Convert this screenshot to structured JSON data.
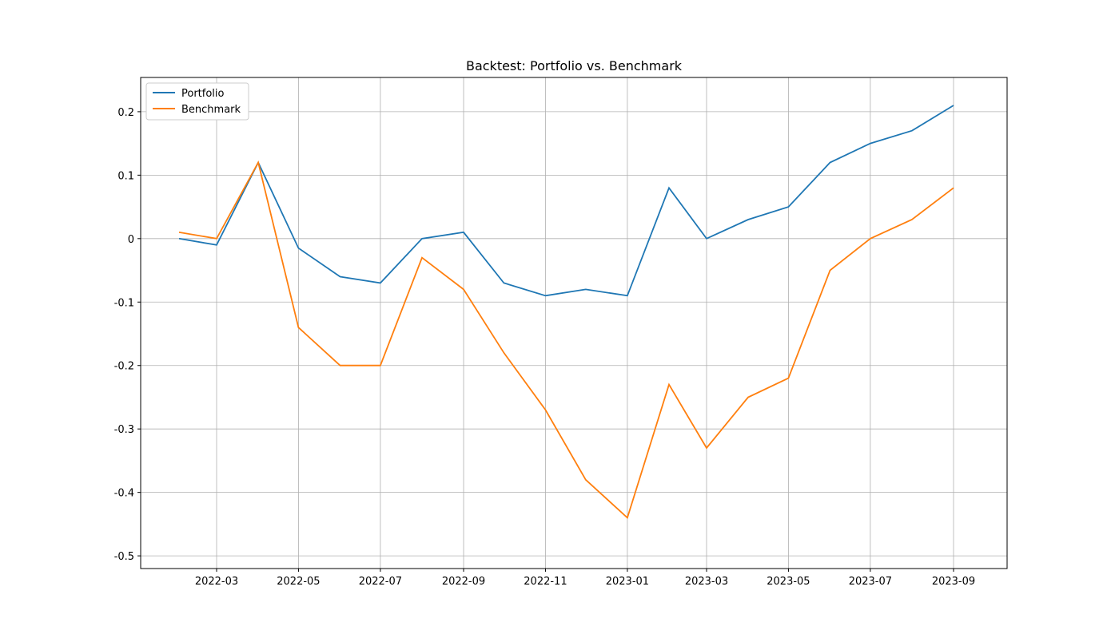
{
  "chart_data": {
    "type": "line",
    "title": "Backtest: Portfolio vs. Benchmark",
    "x": [
      "2022-02",
      "2022-03",
      "2022-04",
      "2022-05",
      "2022-06",
      "2022-07",
      "2022-08",
      "2022-09",
      "2022-10",
      "2022-11",
      "2022-12",
      "2023-01",
      "2023-02",
      "2023-03",
      "2023-04",
      "2023-05",
      "2023-06",
      "2023-07",
      "2023-08",
      "2023-09"
    ],
    "series": [
      {
        "name": "Portfolio",
        "color": "#1f77b4",
        "values": [
          0.0,
          -0.01,
          0.12,
          -0.015,
          -0.06,
          -0.07,
          0.0,
          0.01,
          -0.07,
          -0.09,
          -0.08,
          -0.09,
          0.08,
          0.0,
          0.03,
          0.05,
          0.12,
          0.15,
          0.17,
          0.21
        ]
      },
      {
        "name": "Benchmark",
        "color": "#ff7f0e",
        "values": [
          0.01,
          0.0,
          0.12,
          -0.14,
          -0.2,
          -0.2,
          -0.03,
          -0.08,
          -0.18,
          -0.27,
          -0.38,
          -0.44,
          -0.23,
          -0.33,
          -0.25,
          -0.22,
          -0.05,
          0.0,
          0.03,
          0.08
        ]
      }
    ],
    "ylim": [
      -0.52,
      0.254
    ],
    "yticks": [
      -0.5,
      -0.4,
      -0.3,
      -0.2,
      -0.1,
      0.0,
      0.1,
      0.2
    ],
    "xticks": [
      "2022-03",
      "2022-05",
      "2022-07",
      "2022-09",
      "2022-11",
      "2023-01",
      "2023-03",
      "2023-05",
      "2023-07",
      "2023-09"
    ],
    "grid": true,
    "legend": "upper left"
  }
}
